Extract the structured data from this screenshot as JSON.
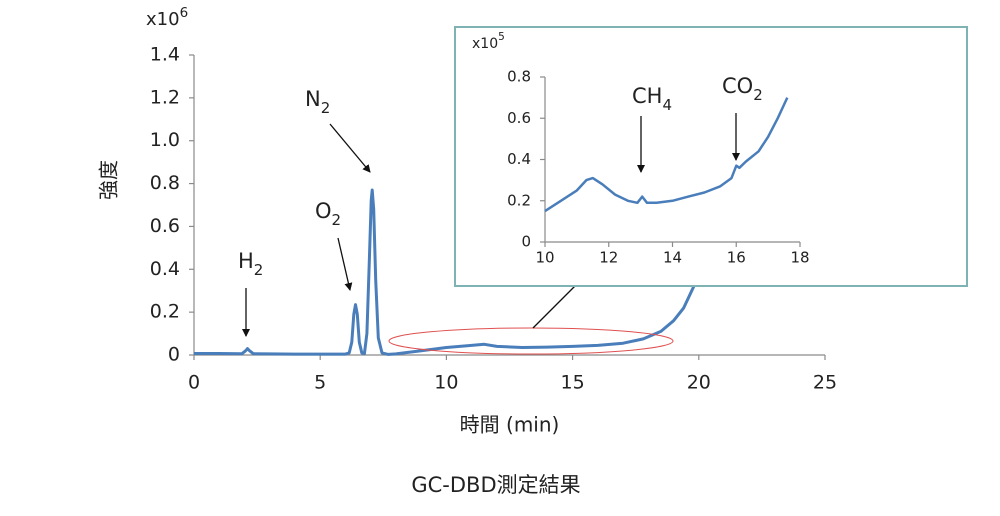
{
  "caption": "GC-DBD測定結果",
  "chart_data": [
    {
      "type": "line",
      "x_label": "時間 (min)",
      "y_label": "強度",
      "y_multiplier": {
        "text": "x10",
        "exponent": "6"
      },
      "color": "#4a7ebb",
      "xlim": [
        0,
        25
      ],
      "xticks": [
        0,
        5,
        10,
        15,
        20,
        25
      ],
      "ylim": [
        0,
        1.4
      ],
      "yticks": [
        0,
        0.2,
        0.4,
        0.6,
        {
          "value": 1,
          "label": "1.0"
        },
        0.8,
        1.2,
        1.4
      ],
      "annotations": [
        {
          "text": "H",
          "sub": "2"
        },
        {
          "text": "O",
          "sub": "2"
        },
        {
          "text": "N",
          "sub": "2"
        }
      ],
      "x": [
        0,
        1,
        1.9,
        2.05,
        2.12,
        2.2,
        2.35,
        3,
        4,
        5,
        6,
        6.15,
        6.25,
        6.33,
        6.4,
        6.47,
        6.55,
        6.65,
        6.75,
        6.85,
        6.95,
        7.02,
        7.06,
        7.12,
        7.2,
        7.3,
        7.45,
        7.7,
        8,
        9,
        10,
        11,
        11.5,
        12,
        13,
        14,
        15,
        16,
        17,
        17.8,
        18.5,
        19,
        19.4,
        19.8
      ],
      "values": [
        0.007,
        0.007,
        0.006,
        0.02,
        0.03,
        0.02,
        0.006,
        0.005,
        0.004,
        0.004,
        0.004,
        0.01,
        0.06,
        0.19,
        0.235,
        0.19,
        0.06,
        0.01,
        0.006,
        0.1,
        0.45,
        0.72,
        0.77,
        0.68,
        0.35,
        0.08,
        0.01,
        0.003,
        0.005,
        0.02,
        0.035,
        0.045,
        0.05,
        0.04,
        0.035,
        0.037,
        0.04,
        0.045,
        0.055,
        0.075,
        0.11,
        0.16,
        0.22,
        0.32
      ]
    },
    {
      "type": "line",
      "y_multiplier": {
        "text": "x10",
        "exponent": "5"
      },
      "color": "#4a7ebb",
      "xlim": [
        10,
        18
      ],
      "xticks": [
        10,
        12,
        14,
        16,
        18
      ],
      "ylim": [
        0,
        0.8
      ],
      "yticks": [
        0,
        0.2,
        0.4,
        0.6,
        0.8
      ],
      "annotations": [
        {
          "text": "CH",
          "sub": "4"
        },
        {
          "text": "CO",
          "sub": "2"
        }
      ],
      "x": [
        10,
        10.5,
        11,
        11.3,
        11.5,
        11.8,
        12.2,
        12.6,
        12.9,
        13.05,
        13.2,
        13.5,
        14,
        14.5,
        15,
        15.5,
        15.85,
        16,
        16.1,
        16.3,
        16.7,
        17,
        17.3,
        17.6
      ],
      "values": [
        0.15,
        0.2,
        0.25,
        0.3,
        0.31,
        0.28,
        0.23,
        0.2,
        0.19,
        0.22,
        0.19,
        0.19,
        0.2,
        0.22,
        0.24,
        0.27,
        0.31,
        0.37,
        0.36,
        0.39,
        0.44,
        0.51,
        0.6,
        0.7
      ]
    }
  ]
}
